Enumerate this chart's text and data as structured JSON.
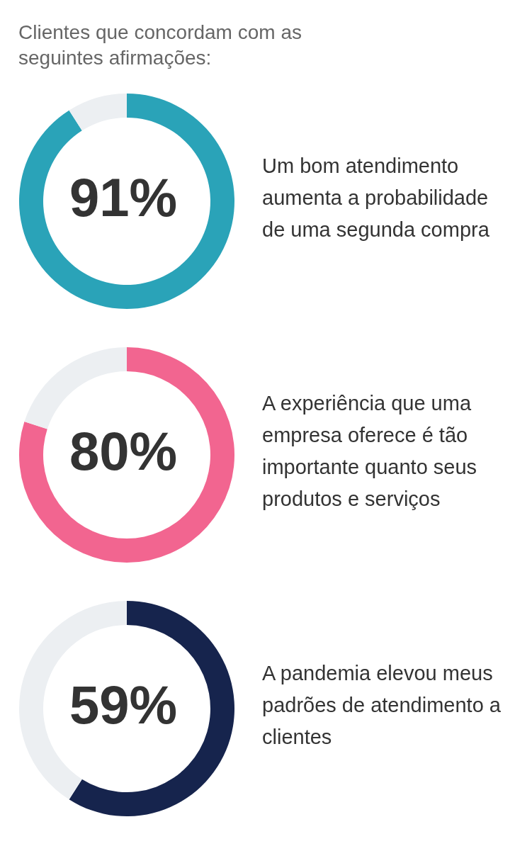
{
  "chart_data": [
    {
      "type": "donut",
      "title": "Clientes que concordam com as seguintes afirmações:",
      "categories": [
        null,
        null
      ],
      "values": [
        91,
        9
      ],
      "colors": [
        "#2aa3b8",
        "#eceff2"
      ],
      "annotations": [
        "91%",
        "Um bom atendimento aumenta a probabilidade de uma segunda compra"
      ],
      "legend": false
    },
    {
      "type": "donut",
      "categories": [
        null,
        null
      ],
      "values": [
        80,
        20
      ],
      "colors": [
        "#f26590",
        "#eceff2"
      ],
      "annotations": [
        "80%",
        "A experiência que uma empresa oferece é tão importante quanto seus produtos e serviços"
      ],
      "legend": false
    },
    {
      "type": "donut",
      "categories": [
        null,
        null
      ],
      "values": [
        59,
        41
      ],
      "colors": [
        "#16244d",
        "#eceff2"
      ],
      "annotations": [
        "59%",
        "A pandemia elevou meus padrões de atendimento a clientes"
      ],
      "legend": false
    }
  ]
}
